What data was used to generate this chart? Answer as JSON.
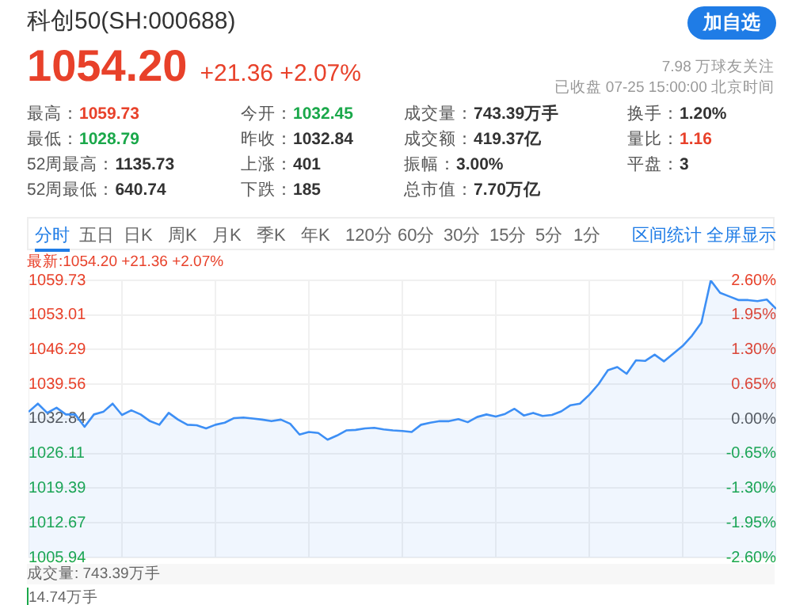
{
  "chart_data": {
    "type": "area",
    "title": "科创50(SH:000688)",
    "subtitle": "1054.20 +21.36 +2.07%",
    "annotations": [
      "加自选",
      "7.98 万球友关注",
      "已收盘 07-25 15:00:00 北京时间",
      "最高：1059.73",
      "今开：1032.45",
      "成交量：743.39万手",
      "换手：1.20%",
      "最低：1028.79",
      "昨收：1032.84",
      "成交额：419.37亿",
      "量比：1.16",
      "52周最高：1135.73",
      "上涨：401",
      "振幅：3.00%",
      "平盘：3",
      "52周最低：640.74",
      "下跌：185",
      "总市值：7.70万亿",
      "分时",
      "五日",
      "日K",
      "周K",
      "月K",
      "季K",
      "年K",
      "120分",
      "60分",
      "30分",
      "15分",
      "5分",
      "1分",
      "区间统计",
      "全屏显示",
      "最新:1054.20 +21.36 +2.07%",
      "成交量: 743.39万手",
      "14.74万手"
    ],
    "categories": [
      null,
      null,
      null,
      null,
      null,
      null,
      null,
      null,
      null,
      null,
      null,
      null,
      null,
      null,
      null,
      null,
      null,
      null,
      null,
      null,
      null,
      null,
      null,
      null,
      null,
      null,
      null,
      null,
      null,
      null,
      null,
      null,
      null,
      null,
      null,
      null,
      null,
      null,
      null,
      null,
      null,
      null,
      null,
      null,
      null,
      null,
      null,
      null,
      null,
      null,
      null,
      null,
      null,
      null,
      null,
      null,
      null,
      null,
      null,
      null,
      null,
      null,
      null,
      null,
      null,
      null,
      null,
      null,
      null,
      null,
      null,
      null,
      null,
      null,
      null,
      null,
      null,
      null,
      null,
      null,
      null
    ],
    "series": [
      {
        "color": "#3d8ff5",
        "values": [
          1034.2,
          1035.8,
          1034.0,
          1035.0,
          1033.7,
          1033.7,
          1031.3,
          1033.7,
          1034.2,
          1035.8,
          1033.6,
          1034.5,
          1033.7,
          1032.4,
          1031.7,
          1034.0,
          1032.7,
          1031.7,
          1031.6,
          1031.0,
          1031.7,
          1032.1,
          1033.0,
          1033.1,
          1032.9,
          1032.7,
          1032.4,
          1032.7,
          1031.9,
          1029.8,
          1030.3,
          1030.1,
          1028.8,
          1029.6,
          1030.6,
          1030.7,
          1031.0,
          1031.1,
          1030.8,
          1030.6,
          1030.5,
          1030.3,
          1031.7,
          1032.1,
          1032.4,
          1032.4,
          1032.8,
          1032.2,
          1033.2,
          1033.7,
          1033.3,
          1033.8,
          1034.8,
          1033.5,
          1034.0,
          1033.4,
          1033.6,
          1034.3,
          1035.5,
          1035.8,
          1037.5,
          1039.6,
          1042.3,
          1042.9,
          1041.6,
          1044.2,
          1044.1,
          1045.3,
          1044.0,
          1045.5,
          1047.0,
          1049.0,
          1051.5,
          1059.7,
          1057.3,
          1056.6,
          1055.9,
          1055.9,
          1055.7,
          1056.0,
          1054.2
        ]
      }
    ],
    "ylim": [
      1005.94,
      1059.73
    ],
    "yticks": [
      1005.94,
      1012.67,
      1019.39,
      1026.11,
      1032.84,
      1039.56,
      1046.29,
      1053.01,
      1059.73
    ],
    "y2lim": [
      -2.6,
      2.6
    ],
    "y2ticks": [
      {
        "value": -2.6,
        "label": "-2.60%"
      },
      {
        "value": -1.95,
        "label": "-1.95%"
      },
      {
        "value": -1.3,
        "label": "-1.30%"
      },
      {
        "value": -0.65,
        "label": "-0.65%"
      },
      {
        "value": 0,
        "label": "0.00%"
      },
      {
        "value": 0.65,
        "label": "0.65%"
      },
      {
        "value": 1.3,
        "label": "1.30%"
      },
      {
        "value": 1.95,
        "label": "1.95%"
      },
      {
        "value": 2.6,
        "label": "2.60%"
      }
    ],
    "grid": true,
    "tick_labels": "y",
    "marker": "none",
    "line_style": "solid",
    "legend": false
  }
}
